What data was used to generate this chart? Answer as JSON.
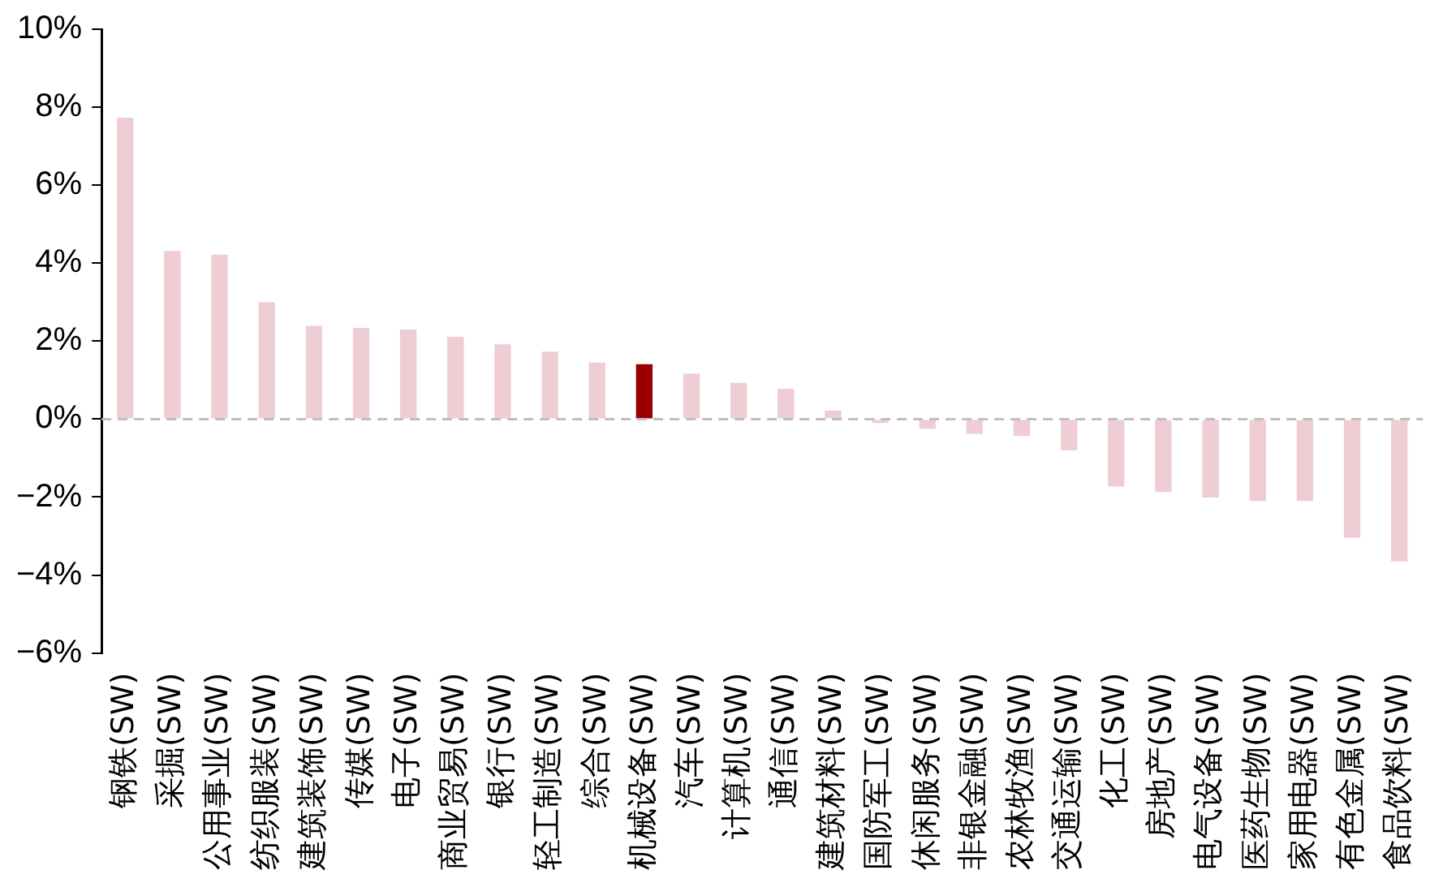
{
  "chart_data": {
    "type": "bar",
    "categories": [
      "钢铁(SW)",
      "采掘(SW)",
      "公用事业(SW)",
      "纺织服装(SW)",
      "建筑装饰(SW)",
      "传媒(SW)",
      "电子(SW)",
      "商业贸易(SW)",
      "银行(SW)",
      "轻工制造(SW)",
      "综合(SW)",
      "机械设备(SW)",
      "汽车(SW)",
      "计算机(SW)",
      "通信(SW)",
      "建筑材料(SW)",
      "国防军工(SW)",
      "休闲服务(SW)",
      "非银金融(SW)",
      "农林牧渔(SW)",
      "交通运输(SW)",
      "化工(SW)",
      "房地产(SW)",
      "电气设备(SW)",
      "医药生物(SW)",
      "家用电器(SW)",
      "有色金属(SW)",
      "食品饮料(SW)"
    ],
    "values": [
      7.73,
      4.31,
      4.22,
      3.0,
      2.39,
      2.34,
      2.3,
      2.11,
      1.92,
      1.73,
      1.45,
      1.41,
      1.17,
      0.93,
      0.78,
      0.22,
      -0.1,
      -0.25,
      -0.38,
      -0.43,
      -0.8,
      -1.73,
      -1.87,
      -2.01,
      -2.1,
      -2.1,
      -3.04,
      -3.65
    ],
    "colors": [
      "#efcdd4",
      "#efcdd4",
      "#efcdd4",
      "#efcdd4",
      "#efcdd4",
      "#efcdd4",
      "#efcdd4",
      "#efcdd4",
      "#efcdd4",
      "#efcdd4",
      "#efcdd4",
      "#9b0000",
      "#efcdd4",
      "#efcdd4",
      "#efcdd4",
      "#efcdd4",
      "#efcdd4",
      "#efcdd4",
      "#efcdd4",
      "#efcdd4",
      "#efcdd4",
      "#efcdd4",
      "#efcdd4",
      "#efcdd4",
      "#efcdd4",
      "#efcdd4",
      "#efcdd4",
      "#efcdd4"
    ],
    "ylim": [
      -6,
      10
    ],
    "yticks": [
      {
        "value": -6,
        "label": "−6%"
      },
      {
        "value": -4,
        "label": "−4%"
      },
      {
        "value": -2,
        "label": "−2%"
      },
      {
        "value": 0,
        "label": "0%"
      },
      {
        "value": 2,
        "label": "2%"
      },
      {
        "value": 4,
        "label": "4%"
      },
      {
        "value": 6,
        "label": "6%"
      },
      {
        "value": 8,
        "label": "8%"
      },
      {
        "value": 10,
        "label": "10%"
      }
    ],
    "ref_lines": [
      {
        "axis": "y",
        "value": 0,
        "color": "#bfbfbf",
        "line_style": "dashed"
      }
    ],
    "grid": false,
    "legend": false
  }
}
